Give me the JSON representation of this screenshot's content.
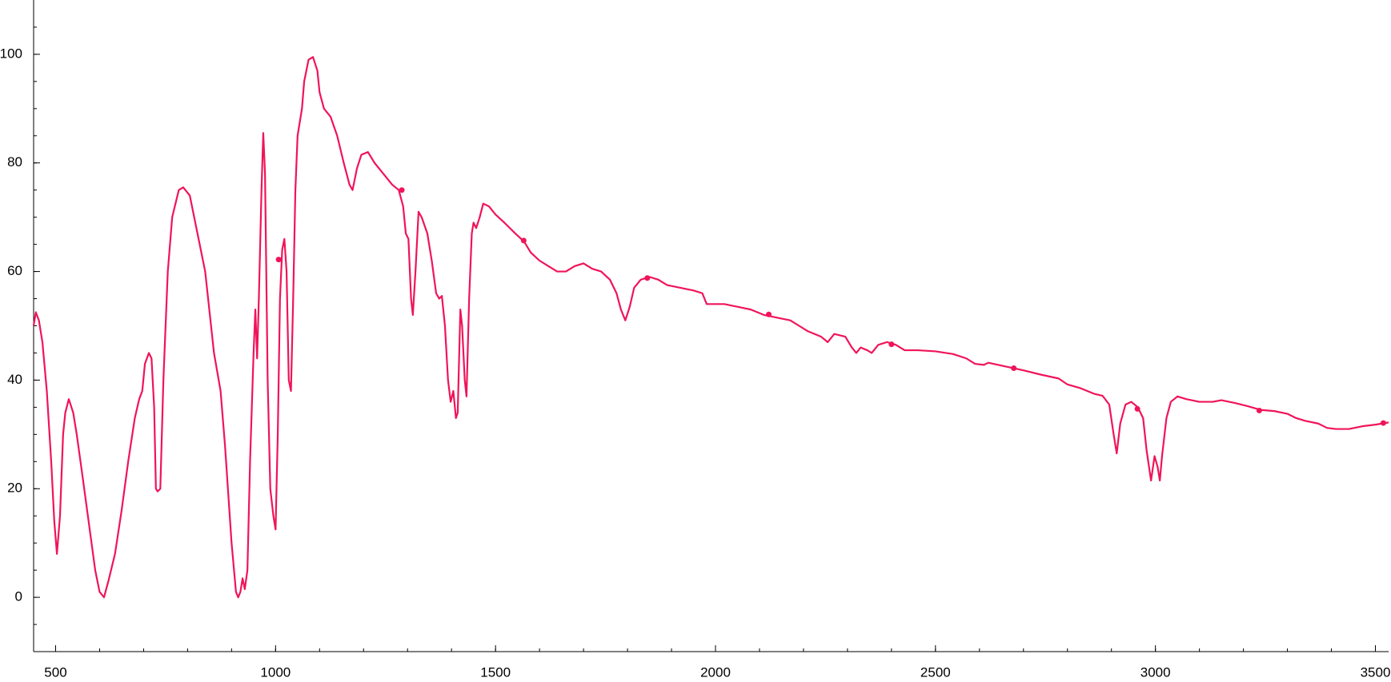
{
  "chart_data": {
    "type": "line",
    "xlim": [
      450,
      3530
    ],
    "ylim": [
      -10,
      110
    ],
    "xticks": [
      500,
      1000,
      1500,
      2000,
      2500,
      3000,
      3500
    ],
    "yticks": [
      0,
      20,
      40,
      60,
      80,
      100
    ],
    "xminorticks": [
      500,
      600,
      700,
      800,
      900,
      1000,
      1100,
      1200,
      1300,
      1400,
      1500,
      1600,
      1700,
      1800,
      1900,
      2000,
      2100,
      2200,
      2300,
      2400,
      2500,
      2600,
      2700,
      2800,
      2900,
      3000,
      3100,
      3200,
      3300,
      3400,
      3500
    ],
    "yminorticks": [
      -5,
      0,
      5,
      10,
      15,
      20,
      25,
      30,
      35,
      40,
      45,
      50,
      55,
      60,
      65,
      70,
      75,
      80,
      85,
      90,
      95,
      100,
      105
    ],
    "grid": false,
    "series": [
      {
        "color": "#f0145a",
        "x": [
          450,
          455,
          462,
          470,
          480,
          490,
          497,
          503,
          510,
          517,
          522,
          530,
          540,
          548,
          560,
          575,
          590,
          600,
          610,
          620,
          635,
          650,
          665,
          680,
          690,
          697,
          703,
          712,
          718,
          724,
          728,
          732,
          738,
          745,
          755,
          765,
          780,
          790,
          805,
          820,
          840,
          860,
          875,
          885,
          900,
          910,
          915,
          920,
          925,
          930,
          936,
          942,
          950,
          954,
          958,
          962,
          968,
          972,
          976,
          982,
          988,
          995,
          1000,
          1005,
          1010,
          1015,
          1020,
          1025,
          1030,
          1035,
          1040,
          1045,
          1050,
          1060,
          1065,
          1075,
          1085,
          1095,
          1100,
          1110,
          1125,
          1140,
          1155,
          1168,
          1175,
          1185,
          1195,
          1210,
          1225,
          1245,
          1265,
          1280,
          1290,
          1296,
          1302,
          1308,
          1312,
          1318,
          1325,
          1332,
          1345,
          1355,
          1365,
          1372,
          1378,
          1385,
          1392,
          1398,
          1404,
          1410,
          1414,
          1420,
          1424,
          1430,
          1434,
          1440,
          1446,
          1450,
          1456,
          1464,
          1472,
          1485,
          1500,
          1520,
          1545,
          1565,
          1580,
          1600,
          1620,
          1640,
          1660,
          1680,
          1700,
          1720,
          1740,
          1760,
          1775,
          1785,
          1795,
          1805,
          1815,
          1830,
          1850,
          1870,
          1890,
          1920,
          1950,
          1970,
          1980,
          2000,
          2020,
          2050,
          2080,
          2110,
          2140,
          2170,
          2190,
          2210,
          2240,
          2255,
          2270,
          2295,
          2310,
          2320,
          2330,
          2345,
          2355,
          2370,
          2390,
          2410,
          2430,
          2460,
          2500,
          2540,
          2570,
          2590,
          2610,
          2620,
          2660,
          2700,
          2740,
          2780,
          2800,
          2830,
          2860,
          2880,
          2895,
          2905,
          2912,
          2920,
          2932,
          2945,
          2960,
          2972,
          2980,
          2990,
          2998,
          3005,
          3010,
          3015,
          3025,
          3035,
          3050,
          3070,
          3100,
          3130,
          3150,
          3180,
          3210,
          3240,
          3270,
          3300,
          3320,
          3340,
          3370,
          3390,
          3410,
          3440,
          3470,
          3500,
          3530
        ],
        "values": [
          50,
          52.5,
          51,
          47,
          38,
          25,
          14,
          8,
          15,
          30,
          34,
          36.5,
          34,
          30,
          23,
          14,
          5,
          1,
          0,
          3,
          8,
          16,
          25,
          33,
          36.5,
          38,
          43,
          45,
          44,
          35,
          20,
          19.5,
          20,
          40,
          60,
          70,
          75,
          75.5,
          74,
          68,
          60,
          45,
          38,
          28,
          10,
          1,
          0,
          1,
          3.5,
          1.5,
          5,
          25,
          45,
          53,
          44,
          55,
          75,
          85.5,
          78,
          40,
          20,
          15,
          12.5,
          30,
          55,
          64,
          66,
          60,
          40,
          38,
          55,
          75,
          85,
          90,
          95,
          99,
          99.5,
          97,
          93,
          90,
          88.5,
          85,
          80,
          76,
          75,
          79,
          81.5,
          82,
          80,
          78,
          76,
          75,
          72,
          67,
          66,
          55,
          52,
          60,
          71,
          70,
          67,
          62,
          56,
          55,
          55.5,
          50,
          40,
          36,
          38,
          33,
          34,
          53,
          50,
          40,
          37,
          55,
          67,
          69,
          68,
          70,
          72.5,
          72,
          70.5,
          69,
          67,
          65.5,
          63.5,
          62,
          61,
          60,
          60,
          61,
          61.5,
          60.5,
          60,
          58.5,
          56,
          53,
          51,
          53.5,
          57,
          58.5,
          59,
          58.5,
          57.5,
          57,
          56.5,
          56,
          54,
          54,
          54,
          53.5,
          53,
          52,
          51.5,
          51,
          50,
          49,
          48,
          47,
          48.5,
          48,
          46,
          45,
          46,
          45.5,
          45,
          46.5,
          47,
          46.5,
          45.5,
          45.5,
          45.3,
          44.8,
          44,
          43,
          42.8,
          43.2,
          42.5,
          41.8,
          41,
          40.3,
          39.2,
          38.5,
          37.5,
          37.1,
          35.5,
          30,
          26.5,
          32,
          35.5,
          36,
          35,
          33,
          27,
          21.5,
          26,
          24,
          21.5,
          26,
          33,
          36,
          37,
          36.5,
          36,
          36,
          36.3,
          35.8,
          35.2,
          34.5,
          34.3,
          33.8,
          33,
          32.5,
          32,
          31.2,
          31,
          31,
          31.5,
          31.8,
          32.2
        ]
      }
    ],
    "markers": {
      "color": "#f0145a",
      "x": [
        1007,
        1287,
        1564,
        1845,
        2121,
        2400,
        2678,
        2959,
        3236,
        3518
      ],
      "values": [
        62.2,
        75,
        65.7,
        58.8,
        52.1,
        46.6,
        42.2,
        34.7,
        34.4,
        32.1
      ]
    }
  }
}
